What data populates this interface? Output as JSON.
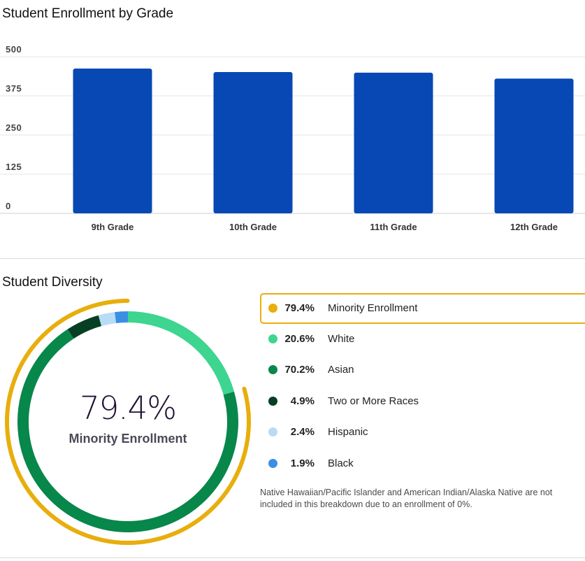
{
  "enrollment": {
    "title": "Student Enrollment by Grade",
    "chart_data": {
      "type": "bar",
      "categories": [
        "9th Grade",
        "10th Grade",
        "11th Grade",
        "12th Grade"
      ],
      "values": [
        462,
        451,
        449,
        430
      ],
      "ylim": [
        0,
        500
      ],
      "yticks": [
        "0",
        "125",
        "250",
        "375",
        "500"
      ],
      "grid": true,
      "bar_color": "#0748b4"
    }
  },
  "diversity": {
    "title": "Student Diversity",
    "center_value": "79.4%",
    "center_label": "Minority Enrollment",
    "chart_data": {
      "type": "pie",
      "categories": [
        "White",
        "Asian",
        "Two or More Races",
        "Hispanic",
        "Black"
      ],
      "values": [
        20.6,
        70.2,
        4.9,
        2.4,
        1.9
      ],
      "colors": [
        "#3dd58f",
        "#07874a",
        "#063f23",
        "#b8dbf6",
        "#3a8fe3"
      ],
      "highlight": {
        "label": "Minority Enrollment",
        "value": 79.4,
        "color": "#e8ae0c"
      }
    },
    "legend": [
      {
        "pct": "79.4%",
        "label": "Minority Enrollment",
        "color": "#e8ae0c",
        "highlight": true
      },
      {
        "pct": "20.6%",
        "label": "White",
        "color": "#3dd58f"
      },
      {
        "pct": "70.2%",
        "label": "Asian",
        "color": "#07874a"
      },
      {
        "pct": "4.9%",
        "label": "Two or More Races",
        "color": "#063f23"
      },
      {
        "pct": "2.4%",
        "label": "Hispanic",
        "color": "#b8dbf6"
      },
      {
        "pct": "1.9%",
        "label": "Black",
        "color": "#3a8fe3"
      }
    ],
    "footnote": "Native Hawaiian/Pacific Islander and American Indian/Alaska Native are not included in this breakdown due to an enrollment of 0%."
  }
}
